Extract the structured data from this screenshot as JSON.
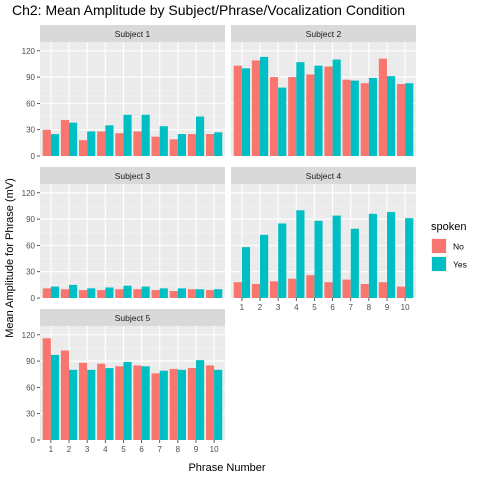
{
  "chart_data": {
    "type": "bar",
    "title": "Ch2: Mean Amplitude by Subject/Phrase/Vocalization Condition",
    "xlabel": "Phrase Number",
    "ylabel": "Mean Amplitude for Phrase (mV)",
    "ylim": [
      0,
      130
    ],
    "y_ticks": [
      0,
      30,
      60,
      90,
      120
    ],
    "categories": [
      "1",
      "2",
      "3",
      "4",
      "5",
      "6",
      "7",
      "8",
      "9",
      "10"
    ],
    "grid": true,
    "legend": {
      "title": "spoken",
      "placement": "right",
      "entries": [
        {
          "name": "No",
          "color": "#F8766D"
        },
        {
          "name": "Yes",
          "color": "#00BFC4"
        }
      ]
    },
    "panels": [
      {
        "label": "Subject 1",
        "series": [
          {
            "name": "No",
            "values": [
              30,
              41,
              18,
              28,
              26,
              28,
              22,
              19,
              25,
              25
            ]
          },
          {
            "name": "Yes",
            "values": [
              25,
              38,
              28,
              35,
              47,
              47,
              34,
              25,
              45,
              27
            ]
          }
        ]
      },
      {
        "label": "Subject 2",
        "series": [
          {
            "name": "No",
            "values": [
              103,
              109,
              90,
              90,
              93,
              102,
              87,
              83,
              111,
              82
            ]
          },
          {
            "name": "Yes",
            "values": [
              100,
              113,
              78,
              107,
              103,
              110,
              86,
              89,
              91,
              83
            ]
          }
        ]
      },
      {
        "label": "Subject 3",
        "series": [
          {
            "name": "No",
            "values": [
              11,
              10,
              9,
              9,
              10,
              10,
              9,
              8,
              10,
              9
            ]
          },
          {
            "name": "Yes",
            "values": [
              13,
              15,
              11,
              12,
              14,
              13,
              11,
              11,
              10,
              10
            ]
          }
        ]
      },
      {
        "label": "Subject 4",
        "series": [
          {
            "name": "No",
            "values": [
              18,
              16,
              19,
              22,
              26,
              18,
              21,
              16,
              18,
              13
            ]
          },
          {
            "name": "Yes",
            "values": [
              58,
              72,
              85,
              100,
              88,
              94,
              79,
              96,
              98,
              91
            ]
          }
        ]
      },
      {
        "label": "Subject 5",
        "series": [
          {
            "name": "No",
            "values": [
              116,
              102,
              88,
              87,
              84,
              85,
              76,
              81,
              82,
              85
            ]
          },
          {
            "name": "Yes",
            "values": [
              97,
              80,
              80,
              82,
              89,
              84,
              79,
              80,
              91,
              80
            ]
          }
        ]
      }
    ]
  }
}
